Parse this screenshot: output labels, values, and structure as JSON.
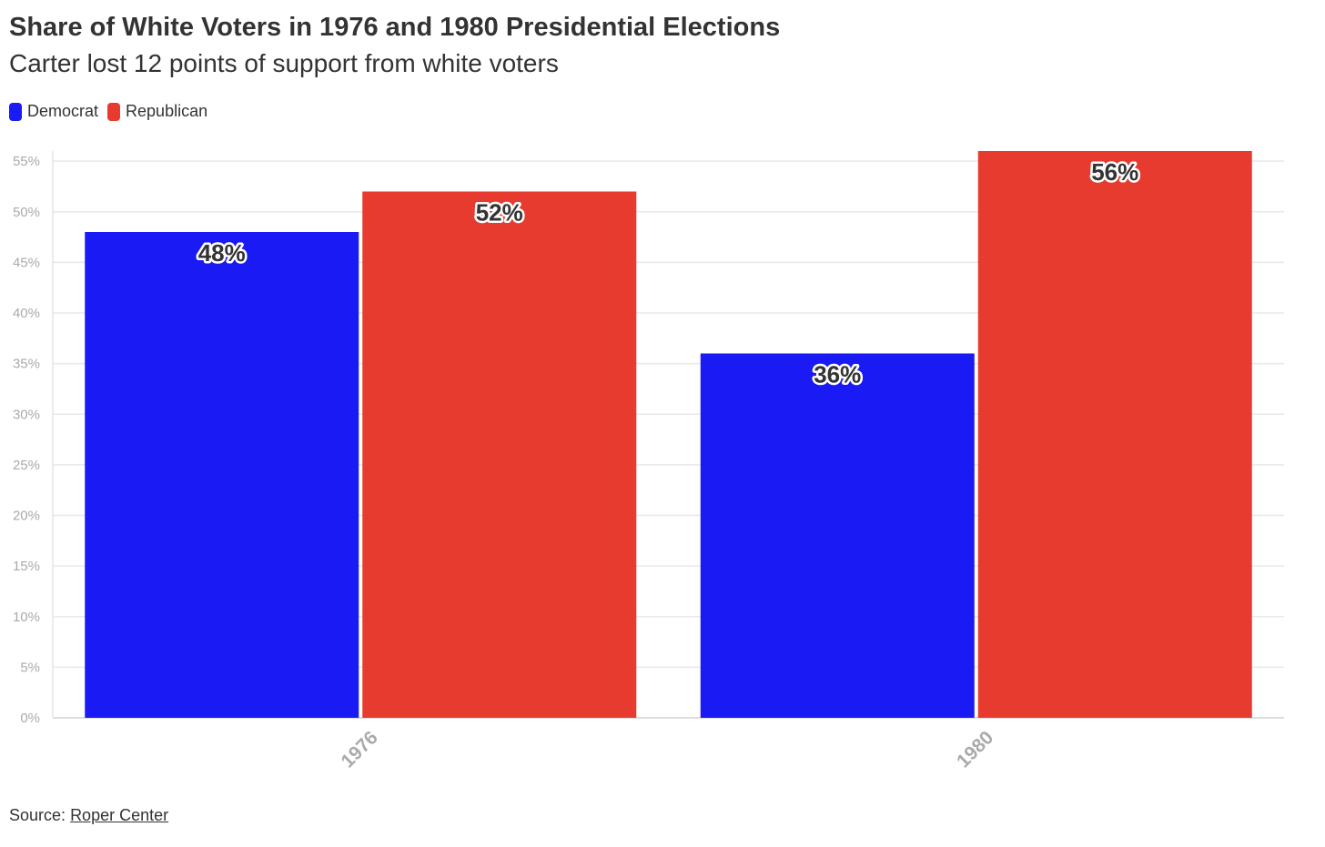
{
  "header": {
    "title": "Share of White Voters in 1976 and 1980 Presidential Elections",
    "subtitle": "Carter lost 12 points of support from white voters"
  },
  "legend": {
    "items": [
      {
        "label": "Democrat",
        "color": "#1a1af5"
      },
      {
        "label": "Republican",
        "color": "#e63b2e"
      }
    ]
  },
  "footer": {
    "source_prefix": "Source:",
    "source_link": "Roper Center"
  },
  "chart_data": {
    "type": "bar",
    "title": "Share of White Voters in 1976 and 1980 Presidential Elections",
    "subtitle": "Carter lost 12 points of support from white voters",
    "categories": [
      "1976",
      "1980"
    ],
    "series": [
      {
        "name": "Democrat",
        "color": "#1a1af5",
        "values": [
          48,
          36
        ],
        "labels": [
          "48%",
          "36%"
        ]
      },
      {
        "name": "Republican",
        "color": "#e63b2e",
        "values": [
          52,
          56
        ],
        "labels": [
          "52%",
          "56%"
        ]
      }
    ],
    "ylim": [
      0,
      56
    ],
    "yticks": [
      0,
      5,
      10,
      15,
      20,
      25,
      30,
      35,
      40,
      45,
      50,
      55
    ],
    "ytick_labels": [
      "0%",
      "5%",
      "10%",
      "15%",
      "20%",
      "25%",
      "30%",
      "35%",
      "40%",
      "45%",
      "50%",
      "55%"
    ],
    "grid": true,
    "legend_position": "top-left"
  }
}
